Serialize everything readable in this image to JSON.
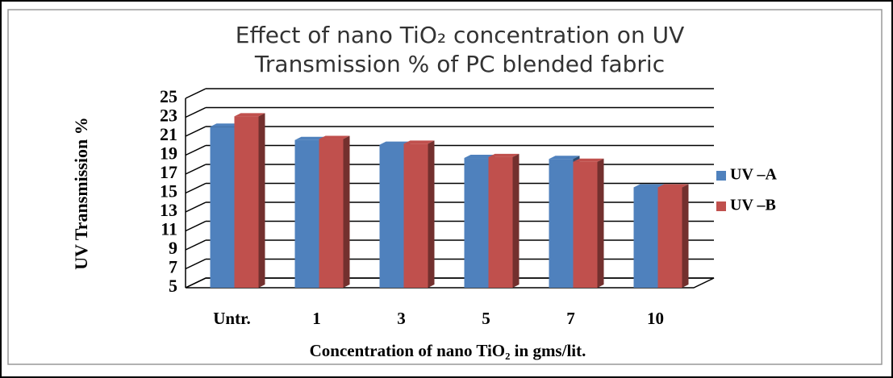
{
  "chart_data": {
    "type": "bar",
    "title": "Effect of nano TiO₂ concentration on UV Transmission % of PC blended fabric",
    "x_label": "Concentration of nano TiO₂ in gms/lit.",
    "y_label": "UV  Transmission %",
    "categories": [
      "Untr.",
      "1",
      "3",
      "5",
      "7",
      "10"
    ],
    "series": [
      {
        "name": "UV –A",
        "color": "#4f81bd",
        "values": [
          22,
          20.6,
          20.1,
          18.7,
          18.6,
          15.6
        ]
      },
      {
        "name": "UV –B",
        "color": "#c0504d",
        "values": [
          23.1,
          20.7,
          20.2,
          18.8,
          18.3,
          15.6
        ]
      }
    ],
    "ylim": [
      5,
      25
    ],
    "yticks": [
      5,
      7,
      9,
      11,
      13,
      15,
      17,
      19,
      21,
      23,
      25
    ],
    "grid": true,
    "legend": "right"
  }
}
